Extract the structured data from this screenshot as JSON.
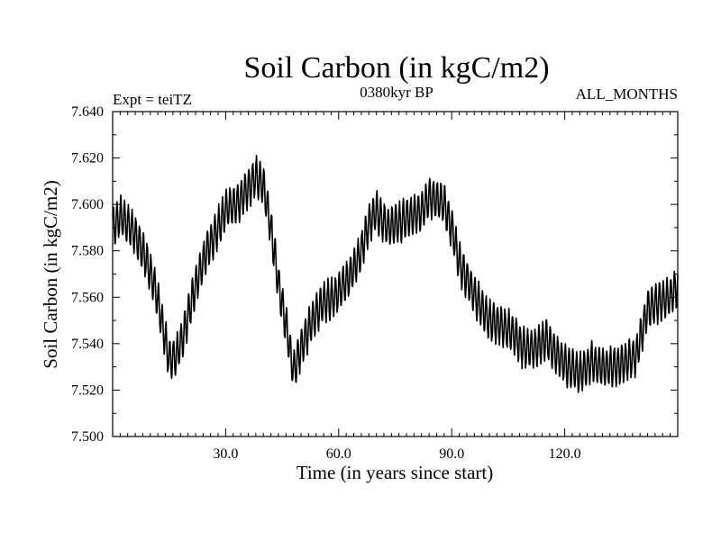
{
  "chart_data": {
    "type": "line",
    "title": "Soil Carbon (in kgC/m2)",
    "subtitle_left": "Expt = teiTZ",
    "subtitle_center": "0380kyr BP",
    "subtitle_right": "ALL_MONTHS",
    "xlabel": "Time (in years since start)",
    "ylabel": "Soil Carbon (in kgC/m2)",
    "xlim": [
      0,
      150
    ],
    "ylim": [
      7.5,
      7.64
    ],
    "xticks": [
      30,
      60,
      90,
      120
    ],
    "xtick_labels": [
      "30.0",
      "60.0",
      "90.0",
      "120.0"
    ],
    "yticks": [
      7.5,
      7.52,
      7.54,
      7.56,
      7.58,
      7.6,
      7.62,
      7.64
    ],
    "ytick_labels": [
      "7.500",
      "7.520",
      "7.540",
      "7.560",
      "7.580",
      "7.600",
      "7.620",
      "7.640"
    ],
    "grid": false,
    "series": [
      {
        "name": "Soil Carbon",
        "color": "#000000",
        "seasonal_amplitude": 0.008,
        "trend": {
          "x": [
            0,
            2,
            5,
            8,
            11,
            13,
            15,
            17,
            19,
            22,
            25,
            28,
            30,
            33,
            36,
            38,
            40,
            42,
            44,
            46,
            48,
            50,
            53,
            56,
            59,
            62,
            64,
            66,
            68,
            70,
            73,
            76,
            79,
            82,
            84,
            86,
            88,
            90,
            92,
            94,
            97,
            100,
            103,
            106,
            109,
            112,
            115,
            118,
            121,
            124,
            127,
            130,
            133,
            136,
            139,
            142,
            145,
            148,
            150
          ],
          "y": [
            7.59,
            7.595,
            7.59,
            7.58,
            7.566,
            7.55,
            7.533,
            7.535,
            7.545,
            7.565,
            7.58,
            7.59,
            7.598,
            7.6,
            7.607,
            7.612,
            7.608,
            7.59,
            7.566,
            7.548,
            7.528,
            7.538,
            7.55,
            7.558,
            7.56,
            7.567,
            7.572,
            7.58,
            7.592,
            7.597,
            7.59,
            7.592,
            7.595,
            7.597,
            7.603,
            7.602,
            7.6,
            7.59,
            7.575,
            7.568,
            7.558,
            7.55,
            7.548,
            7.545,
            7.538,
            7.538,
            7.542,
            7.535,
            7.53,
            7.527,
            7.532,
            7.53,
            7.53,
            7.532,
            7.535,
            7.555,
            7.558,
            7.56,
            7.565
          ]
        }
      }
    ]
  }
}
